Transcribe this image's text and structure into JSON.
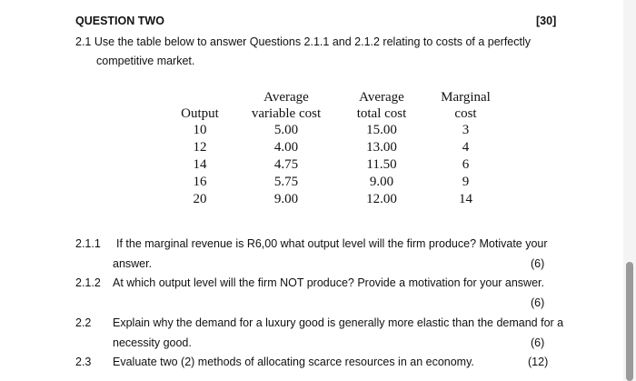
{
  "header": {
    "title": "QUESTION TWO",
    "marks": "[30]"
  },
  "intro": {
    "number": "2.1",
    "line1": "Use the table below to answer Questions 2.1.1 and 2.1.2 relating to costs of a perfectly",
    "line2": "competitive market."
  },
  "table": {
    "headers": {
      "output": [
        "Output"
      ],
      "avc": [
        "Average",
        "variable cost"
      ],
      "atc": [
        "Average",
        "total cost"
      ],
      "mc": [
        "Marginal",
        "cost"
      ]
    },
    "rows": [
      {
        "output": "10",
        "avc": "5.00",
        "atc": "15.00",
        "mc": "3"
      },
      {
        "output": "12",
        "avc": "4.00",
        "atc": "13.00",
        "mc": "4"
      },
      {
        "output": "14",
        "avc": "4.75",
        "atc": "11.50",
        "mc": "6"
      },
      {
        "output": "16",
        "avc": "5.75",
        "atc": "9.00",
        "mc": "9"
      },
      {
        "output": "20",
        "avc": "9.00",
        "atc": "12.00",
        "mc": "14"
      }
    ]
  },
  "questions": [
    {
      "number": "2.1.1",
      "line1": "If the marginal revenue is R6,00 what output level will the firm produce? Motivate your",
      "line2": "answer.",
      "marks": "(6)"
    },
    {
      "number": "2.1.2",
      "line1": "At which output level will the firm NOT produce? Provide a motivation for your answer.",
      "line2": "",
      "marks": "(6)"
    },
    {
      "number": "2.2",
      "line1": "Explain why the demand for a luxury good is generally more elastic than the demand for a",
      "line2": "necessity good.",
      "marks": "(6)"
    },
    {
      "number": "2.3",
      "line1": "Evaluate two (2) methods of allocating scarce resources in an economy.",
      "line2": "",
      "marks": "(12)"
    }
  ]
}
